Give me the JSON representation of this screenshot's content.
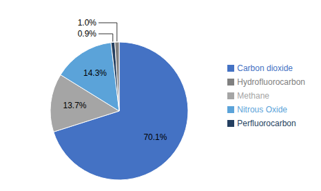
{
  "chart_data": {
    "type": "pie",
    "categories": [
      "Carbon dioxide",
      "Methane",
      "Nitrous Oxide",
      "Perfluorocarbon",
      "Hydrofluorocarbon"
    ],
    "values": [
      70.1,
      13.7,
      14.3,
      0.9,
      1.0
    ],
    "value_labels": [
      "70.1%",
      "13.7%",
      "14.3%",
      "0.9%",
      "1.0%"
    ],
    "colors": [
      "#4472C4",
      "#A5A5A5",
      "#5BA3D9",
      "#243F60",
      "#808080"
    ],
    "data_labels": true,
    "legend": "right"
  }
}
